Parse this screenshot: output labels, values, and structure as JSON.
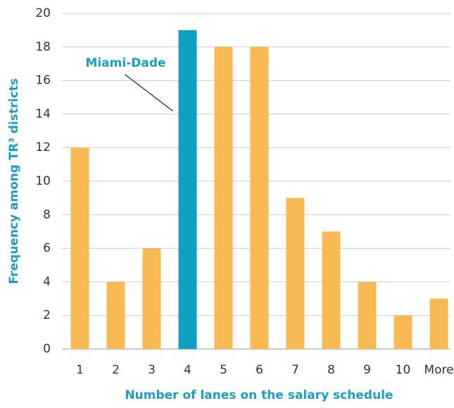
{
  "chart_data": {
    "type": "bar",
    "xlabel": "Number of lanes on the salary schedule",
    "ylabel": "Frequency among TR³ districts",
    "categories": [
      "1",
      "2",
      "3",
      "4",
      "5",
      "6",
      "7",
      "8",
      "9",
      "10",
      "More"
    ],
    "values": [
      12,
      4,
      6,
      19,
      18,
      18,
      9,
      7,
      4,
      2,
      3
    ],
    "colors": [
      "#fbb954",
      "#fbb954",
      "#fbb954",
      "#0f9fc4",
      "#fbb954",
      "#fbb954",
      "#fbb954",
      "#fbb954",
      "#fbb954",
      "#fbb954",
      "#fbb954"
    ],
    "ylim": [
      0,
      20
    ],
    "yticks": [
      0,
      2,
      4,
      6,
      8,
      10,
      12,
      14,
      16,
      18,
      20
    ],
    "grid": true,
    "annotation": {
      "text": "Miami-Dade",
      "category": 3
    }
  }
}
